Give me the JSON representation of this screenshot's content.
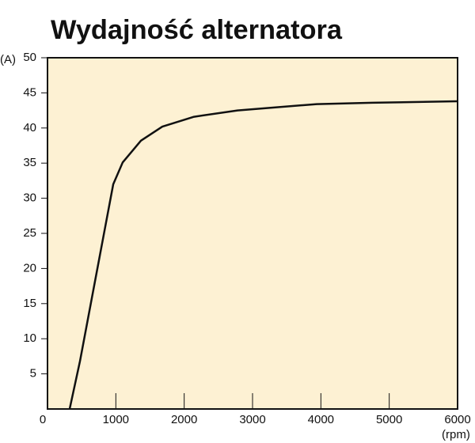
{
  "chart_data": {
    "type": "line",
    "title": "Wydajność alternatora",
    "y_label": "(A)",
    "x_label": "(rpm)",
    "x": [
      324,
      475,
      962,
      1100,
      1367,
      1680,
      2144,
      2780,
      3940,
      4750,
      6000
    ],
    "series": [
      {
        "color": "#111111",
        "values": [
          0,
          6.8,
          32,
          35.1,
          38.2,
          40.2,
          41.6,
          42.5,
          43.4,
          43.6,
          43.8
        ]
      }
    ],
    "xlim": [
      0,
      6000
    ],
    "xticks": [
      0,
      1000,
      2000,
      3000,
      4000,
      5000,
      6000
    ],
    "ylim": [
      0,
      50
    ],
    "yticks": [
      5,
      10,
      15,
      20,
      25,
      30,
      35,
      40,
      45,
      50
    ],
    "background": "#fdf1d3",
    "grid": false
  }
}
